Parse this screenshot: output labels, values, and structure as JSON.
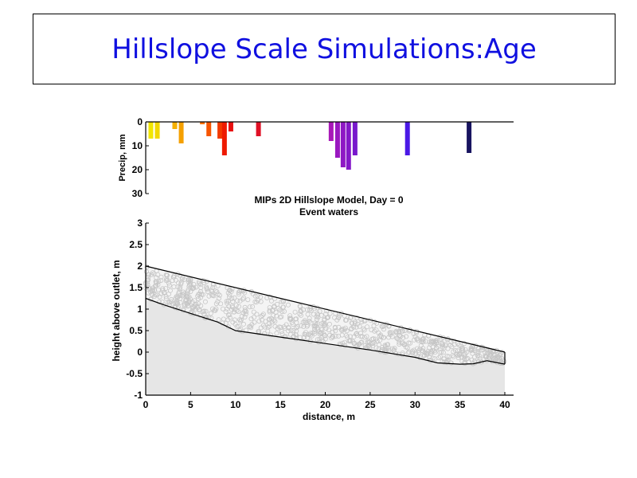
{
  "slide": {
    "title": "Hillslope Scale Simulations:Age"
  },
  "chart_data": [
    {
      "type": "bar",
      "name": "precipitation",
      "ylabel": "Precip, mm",
      "ylim": [
        0,
        30
      ],
      "y_inverted": true,
      "yticks": [
        0,
        10,
        20,
        30
      ],
      "xlim": [
        0,
        40
      ],
      "bars": [
        {
          "x": 0.3,
          "value": 7,
          "color": "#f2e600"
        },
        {
          "x": 1.0,
          "value": 7,
          "color": "#f2d800"
        },
        {
          "x": 2.9,
          "value": 3,
          "color": "#f5b000"
        },
        {
          "x": 3.6,
          "value": 9,
          "color": "#f5a000"
        },
        {
          "x": 5.9,
          "value": 1,
          "color": "#f77000"
        },
        {
          "x": 6.6,
          "value": 6,
          "color": "#f75500"
        },
        {
          "x": 7.8,
          "value": 7,
          "color": "#f23a00"
        },
        {
          "x": 8.3,
          "value": 14,
          "color": "#ee1a00"
        },
        {
          "x": 9.0,
          "value": 4,
          "color": "#e81010"
        },
        {
          "x": 12.0,
          "value": 6,
          "color": "#e01025"
        },
        {
          "x": 19.9,
          "value": 8,
          "color": "#a818b8"
        },
        {
          "x": 20.6,
          "value": 15,
          "color": "#9a18c0"
        },
        {
          "x": 21.2,
          "value": 19,
          "color": "#8e18c4"
        },
        {
          "x": 21.8,
          "value": 20,
          "color": "#8418c8"
        },
        {
          "x": 22.5,
          "value": 14,
          "color": "#7818cc"
        },
        {
          "x": 28.2,
          "value": 14,
          "color": "#4a18e6"
        },
        {
          "x": 34.9,
          "value": 13,
          "color": "#181460"
        }
      ]
    },
    {
      "type": "area",
      "name": "hillslope",
      "title": "MIPs 2D Hillslope Model, Day = 0",
      "subtitle": "Event waters",
      "xlabel": "distance, m",
      "ylabel": "height above outlet, m",
      "xlim": [
        0,
        40
      ],
      "ylim": [
        -1,
        3
      ],
      "xticks": [
        0,
        5,
        10,
        15,
        20,
        25,
        30,
        35,
        40
      ],
      "yticks": [
        -1,
        -0.5,
        0,
        0.5,
        1,
        1.5,
        2,
        2.5,
        3
      ],
      "surface": [
        [
          0,
          2.0
        ],
        [
          40,
          0.0
        ]
      ],
      "bedrock": [
        [
          0,
          1.25
        ],
        [
          2,
          1.1
        ],
        [
          5,
          0.9
        ],
        [
          8,
          0.7
        ],
        [
          10,
          0.5
        ],
        [
          15,
          0.35
        ],
        [
          20,
          0.2
        ],
        [
          25,
          0.05
        ],
        [
          30,
          -0.12
        ],
        [
          32.5,
          -0.25
        ],
        [
          35,
          -0.28
        ],
        [
          36.5,
          -0.27
        ],
        [
          38,
          -0.2
        ],
        [
          40,
          -0.28
        ]
      ]
    }
  ]
}
